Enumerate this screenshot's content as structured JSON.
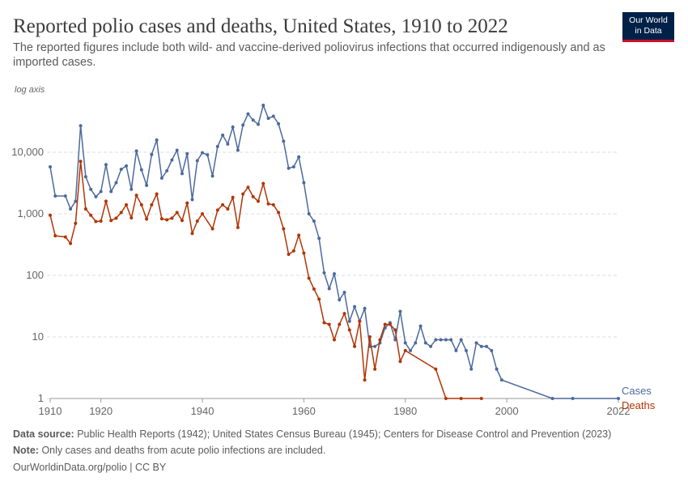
{
  "chart_data": {
    "type": "line",
    "title": "Reported polio cases and deaths, United States, 1910 to 2022",
    "subtitle": "The reported figures include both wild- and vaccine-derived poliovirus infections that occurred indigenously and as imported cases.",
    "axis_note": "log axis",
    "logo": [
      "Our World",
      "in Data"
    ],
    "source_label": "Data source:",
    "source": "Public Health Reports (1942); United States Census Bureau (1945); Centers for Disease Control and Prevention (2023)",
    "note_label": "Note:",
    "note": "Only cases and deaths from acute polio infections are included.",
    "credit": "OurWorldinData.org/polio | CC BY",
    "log_y": true,
    "grid": true,
    "xlim": [
      1910,
      2022
    ],
    "xticks": [
      1910,
      1920,
      1940,
      1960,
      1980,
      2000,
      2022
    ],
    "ylim": [
      1,
      100000
    ],
    "yticks": [
      1,
      10,
      100,
      {
        "value": 1000,
        "label": "1,000"
      },
      {
        "value": 10000,
        "label": "10,000"
      }
    ],
    "series": [
      {
        "name": "Cases",
        "color": "#4c6a9c",
        "x": [
          1910,
          1911,
          1913,
          1914,
          1915,
          1916,
          1917,
          1918,
          1919,
          1920,
          1921,
          1922,
          1923,
          1924,
          1925,
          1926,
          1927,
          1928,
          1929,
          1930,
          1931,
          1932,
          1933,
          1934,
          1935,
          1936,
          1937,
          1938,
          1939,
          1940,
          1941,
          1942,
          1943,
          1944,
          1945,
          1946,
          1947,
          1948,
          1949,
          1950,
          1951,
          1952,
          1953,
          1954,
          1955,
          1956,
          1957,
          1958,
          1959,
          1960,
          1961,
          1962,
          1963,
          1964,
          1965,
          1966,
          1967,
          1968,
          1969,
          1970,
          1971,
          1972,
          1973,
          1974,
          1975,
          1976,
          1977,
          1978,
          1979,
          1980,
          1981,
          1982,
          1983,
          1984,
          1985,
          1986,
          1987,
          1988,
          1989,
          1990,
          1991,
          1992,
          1993,
          1994,
          1995,
          1996,
          1997,
          1998,
          1999,
          2009,
          2013,
          2022
        ],
        "values": [
          5800,
          1950,
          1950,
          1200,
          1600,
          27000,
          4000,
          2500,
          1900,
          2300,
          6300,
          2300,
          3200,
          5300,
          6000,
          2500,
          10500,
          5200,
          2900,
          9200,
          15800,
          3800,
          5000,
          7500,
          10800,
          4500,
          9500,
          1700,
          7300,
          9800,
          9100,
          4100,
          12400,
          19000,
          13600,
          25700,
          10800,
          27700,
          42000,
          33300,
          28400,
          57900,
          35600,
          38500,
          29000,
          15100,
          5500,
          5800,
          8400,
          3200,
          1000,
          760,
          400,
          110,
          61,
          106,
          40,
          53,
          18,
          31,
          18,
          29,
          7,
          7,
          8,
          14,
          17,
          9,
          26,
          8,
          6,
          8,
          15,
          8,
          7,
          9,
          9,
          9,
          9,
          6,
          9,
          6,
          3,
          8,
          7,
          7,
          6,
          3,
          2,
          1,
          1,
          1
        ]
      },
      {
        "name": "Deaths",
        "color": "#b13507",
        "x": [
          1910,
          1911,
          1913,
          1914,
          1915,
          1916,
          1917,
          1918,
          1919,
          1920,
          1921,
          1922,
          1923,
          1924,
          1925,
          1926,
          1927,
          1928,
          1929,
          1930,
          1931,
          1932,
          1933,
          1934,
          1935,
          1936,
          1937,
          1938,
          1939,
          1940,
          1942,
          1943,
          1944,
          1945,
          1946,
          1947,
          1948,
          1949,
          1950,
          1951,
          1952,
          1953,
          1954,
          1955,
          1956,
          1957,
          1958,
          1959,
          1960,
          1961,
          1962,
          1963,
          1964,
          1965,
          1966,
          1967,
          1968,
          1969,
          1970,
          1971,
          1972,
          1973,
          1974,
          1975,
          1976,
          1977,
          1978,
          1979,
          1980,
          1986,
          1988,
          1991,
          1995
        ],
        "values": [
          950,
          440,
          420,
          330,
          700,
          7100,
          1200,
          950,
          750,
          760,
          1600,
          780,
          850,
          1050,
          1400,
          860,
          2000,
          1400,
          820,
          1400,
          2100,
          830,
          800,
          850,
          1050,
          780,
          1500,
          480,
          760,
          1000,
          570,
          1150,
          1400,
          1200,
          1850,
          600,
          2100,
          2700,
          1900,
          1600,
          3100,
          1450,
          1400,
          1050,
          570,
          220,
          250,
          450,
          230,
          90,
          60,
          41,
          17,
          16,
          9,
          16,
          24,
          13,
          7,
          18,
          2,
          10,
          3,
          9,
          16,
          16,
          13,
          4,
          6,
          3,
          1,
          1,
          1
        ]
      }
    ]
  }
}
